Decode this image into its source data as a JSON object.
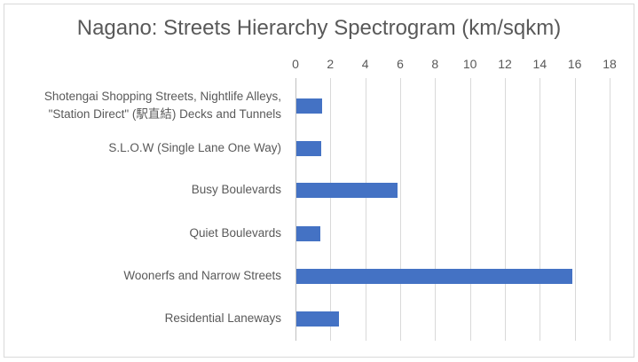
{
  "chart_data": {
    "type": "bar",
    "orientation": "horizontal",
    "title": "Nagano:  Streets Hierarchy Spectrogram (km/sqkm)",
    "xlabel": "",
    "ylabel": "",
    "xlim": [
      0,
      18
    ],
    "x_ticks": [
      "0",
      "2",
      "4",
      "6",
      "8",
      "10",
      "12",
      "14",
      "16",
      "18"
    ],
    "x_axis_position": "top",
    "grid": true,
    "legend": null,
    "bar_color": "#4472c4",
    "categories": [
      "Shotengai Shopping Streets, Nightlife Alleys, \"Station Direct\" (駅直結) Decks and Tunnels",
      "S.L.O.W (Single Lane One Way)",
      "Busy Boulevards",
      "Quiet Boulevards",
      "Woonerfs and Narrow Streets",
      "Residential Laneways"
    ],
    "category_lines": [
      [
        "Shotengai Shopping Streets, Nightlife Alleys,",
        "\"Station Direct\" (駅直結) Decks and Tunnels"
      ],
      [
        "S.L.O.W (Single Lane One Way)"
      ],
      [
        "Busy Boulevards"
      ],
      [
        "Quiet Boulevards"
      ],
      [
        "Woonerfs and Narrow Streets"
      ],
      [
        "Residential Laneways"
      ]
    ],
    "values": [
      1.55,
      1.45,
      5.85,
      1.4,
      15.85,
      2.5
    ]
  }
}
